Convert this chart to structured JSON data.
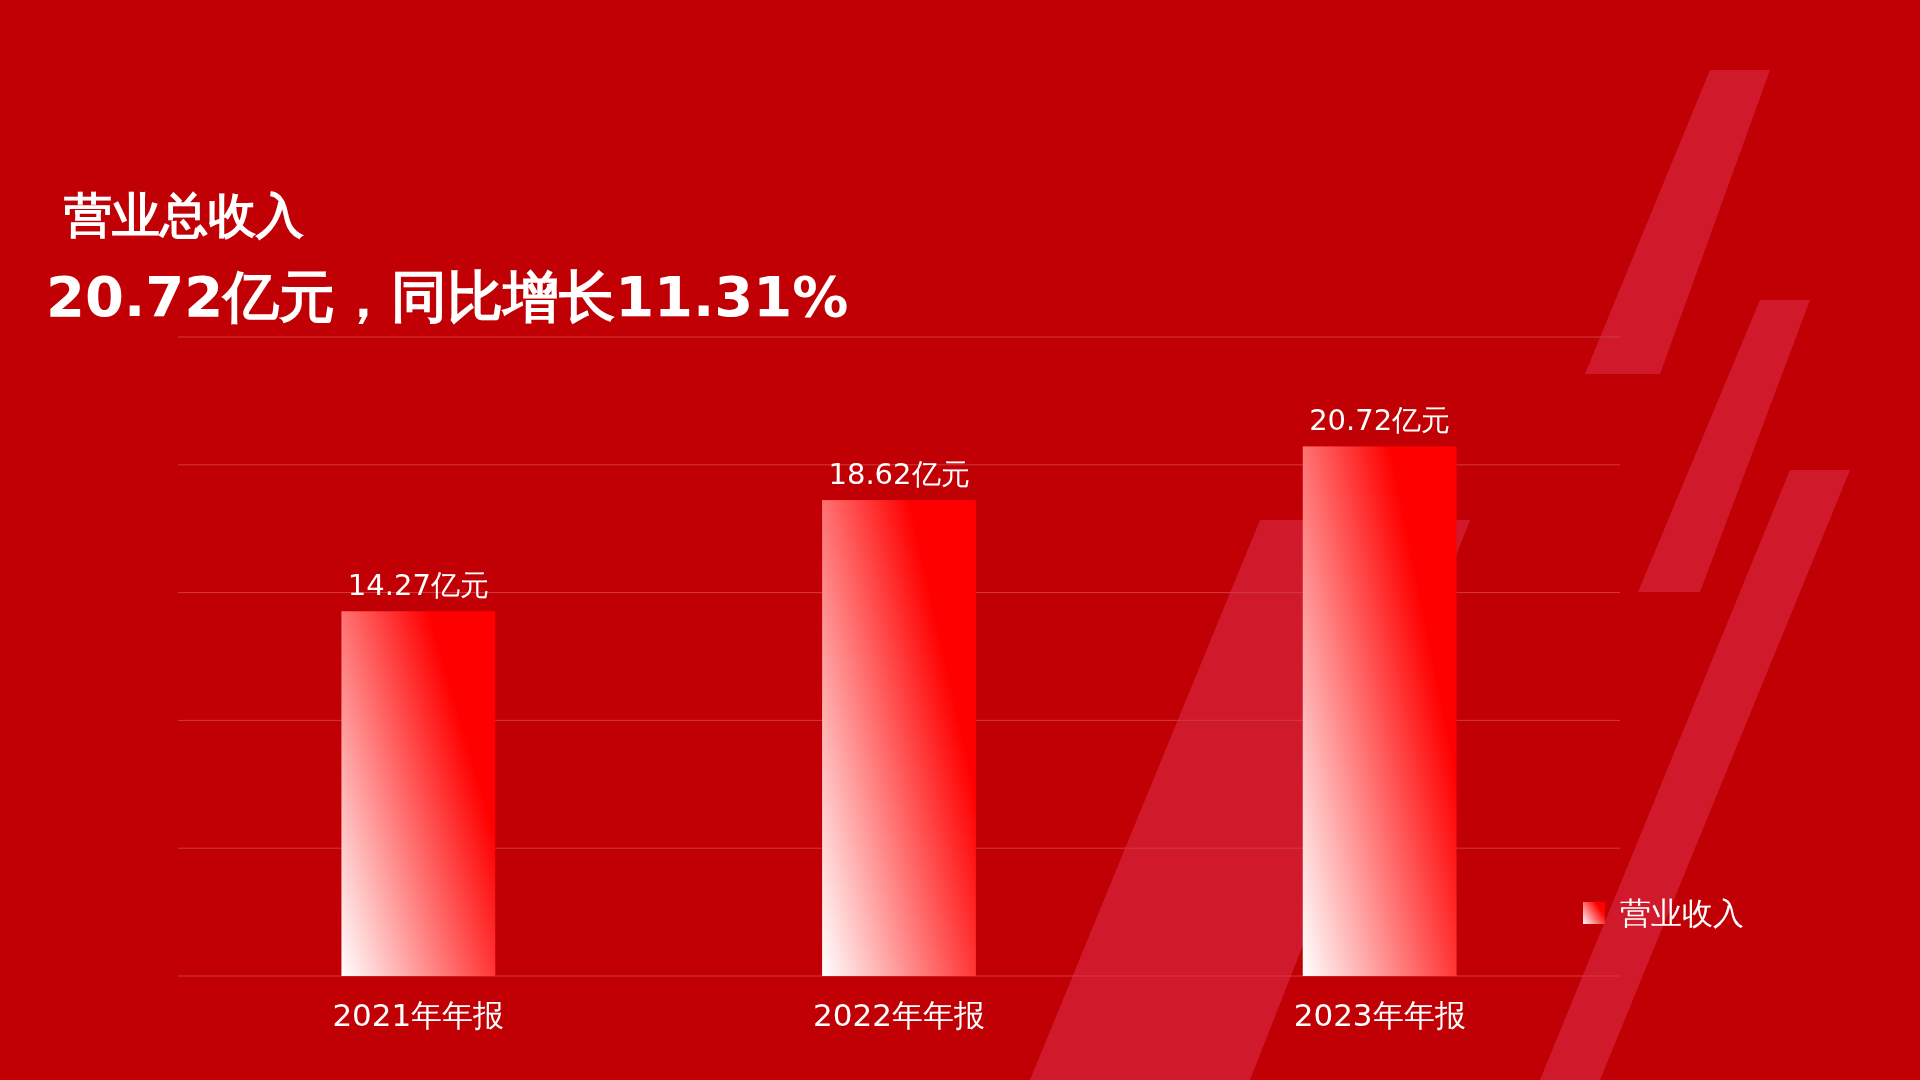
{
  "chart_data": {
    "type": "bar",
    "title": "营业总收入",
    "subtitle": "20.72亿元，同比增长11.31%",
    "categories": [
      "2021年年报",
      "2022年年报",
      "2023年年报"
    ],
    "series": [
      {
        "name": "营业收入",
        "color": "#ff0000",
        "values": [
          14.27,
          18.62,
          20.72
        ],
        "value_labels": [
          "14.27亿元",
          "18.62亿元",
          "20.72亿元"
        ]
      }
    ],
    "ylim": [
      0,
      25
    ],
    "yticks": [
      {
        "value": 0,
        "label": null
      },
      {
        "value": 5,
        "label": null
      },
      {
        "value": 10,
        "label": null
      },
      {
        "value": 15,
        "label": null
      },
      {
        "value": 20,
        "label": null
      },
      {
        "value": 25,
        "label": null
      }
    ],
    "grid": "y",
    "tick_labels": "x",
    "legend": "right"
  }
}
